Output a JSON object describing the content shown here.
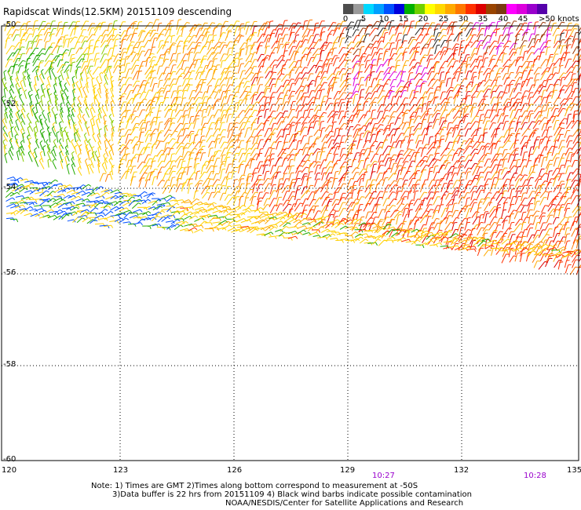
{
  "title": "Rapidscat Winds(12.5KM) 20151109 descending",
  "legend": {
    "colors": [
      "#4d4d4d",
      "#9a9a9a",
      "#00d8ff",
      "#00a0ff",
      "#0050ff",
      "#0000dd",
      "#00b000",
      "#70d000",
      "#ffff00",
      "#ffd800",
      "#ffaa00",
      "#ff7700",
      "#ff3000",
      "#dd0000",
      "#994400",
      "#7a3a10",
      "#ff00ff",
      "#dd00dd",
      "#9900cc",
      "#5500aa"
    ],
    "labels": [
      "0",
      "5",
      "10",
      "15",
      "20",
      "25",
      "30",
      "35",
      "40",
      "45"
    ],
    "unit": ">50 knots"
  },
  "axes": {
    "lat_labels": [
      "-50",
      "-52",
      "-54",
      "-56",
      "-58",
      "-60"
    ],
    "lon_labels": [
      "120",
      "123",
      "126",
      "129",
      "132",
      "135"
    ],
    "time_labels": [
      "10:27",
      "10:28"
    ]
  },
  "footer": {
    "line1": "Note: 1) Times are GMT 2)Times along bottom correspond to measurement at -50S",
    "line2": "3)Data buffer is 22 hrs from 20151109 4) Black wind barbs indicate possible contamination",
    "line3": "NOAA/NESDIS/Center for Satellite Applications and Research"
  }
}
